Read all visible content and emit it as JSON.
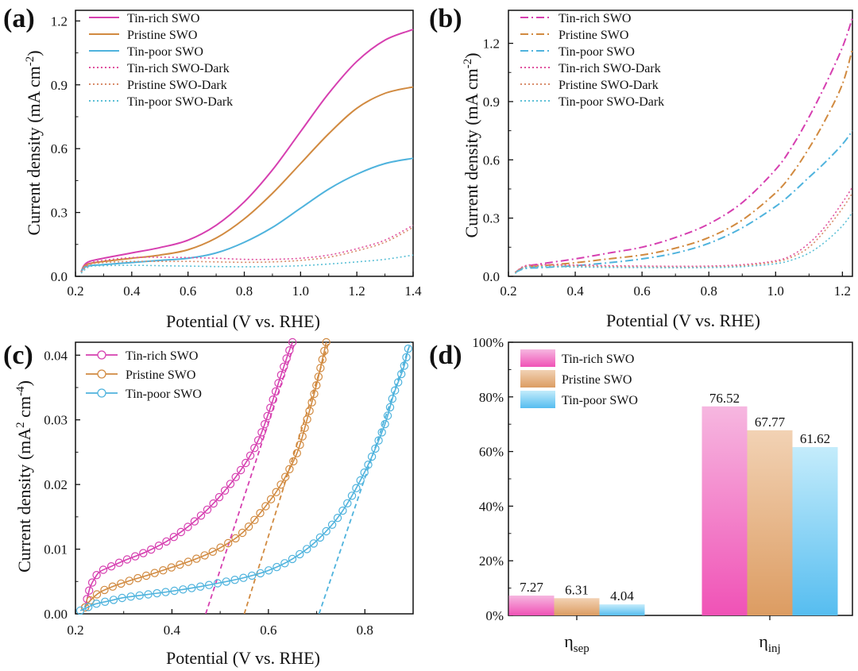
{
  "chart_data": [
    {
      "id": "a",
      "panel_label": "(a)",
      "type": "line",
      "xlabel": "Potential (V vs. RHE)",
      "ylabel_main": "Current density (mA cm",
      "ylabel_sup": "-2",
      "ylabel_end": ")",
      "xlim": [
        0.2,
        1.4
      ],
      "ylim": [
        0,
        1.25
      ],
      "xticks": [
        "0.2",
        "0.4",
        "0.6",
        "0.8",
        "1.0",
        "1.2",
        "1.4"
      ],
      "yticks": [
        "0.0",
        "0.3",
        "0.6",
        "0.9",
        "1.2"
      ],
      "legend": "top-left",
      "series": [
        {
          "name": "Tin-rich SWO",
          "color": "#d63fb0",
          "style": "solid",
          "x": [
            0.22,
            0.23,
            0.25,
            0.3,
            0.4,
            0.5,
            0.6,
            0.7,
            0.8,
            0.9,
            1.0,
            1.1,
            1.2,
            1.3,
            1.4
          ],
          "y": [
            0.02,
            0.05,
            0.07,
            0.085,
            0.11,
            0.135,
            0.17,
            0.24,
            0.35,
            0.5,
            0.68,
            0.86,
            1.01,
            1.11,
            1.16
          ]
        },
        {
          "name": "Pristine SWO",
          "color": "#d18a40",
          "style": "solid",
          "x": [
            0.22,
            0.23,
            0.25,
            0.3,
            0.4,
            0.5,
            0.6,
            0.7,
            0.8,
            0.9,
            1.0,
            1.1,
            1.2,
            1.3,
            1.4
          ],
          "y": [
            0.02,
            0.045,
            0.06,
            0.07,
            0.085,
            0.1,
            0.125,
            0.18,
            0.27,
            0.39,
            0.53,
            0.67,
            0.79,
            0.86,
            0.89
          ]
        },
        {
          "name": "Tin-poor SWO",
          "color": "#4fb3dd",
          "style": "solid",
          "x": [
            0.22,
            0.23,
            0.25,
            0.3,
            0.4,
            0.5,
            0.6,
            0.7,
            0.8,
            0.9,
            1.0,
            1.1,
            1.2,
            1.3,
            1.4
          ],
          "y": [
            0.02,
            0.04,
            0.05,
            0.055,
            0.065,
            0.075,
            0.085,
            0.11,
            0.16,
            0.23,
            0.32,
            0.41,
            0.48,
            0.53,
            0.555
          ]
        },
        {
          "name": "Tin-rich SWO-Dark",
          "color": "#e0509e",
          "style": "dotted",
          "x": [
            0.22,
            0.25,
            0.3,
            0.4,
            0.5,
            0.6,
            0.7,
            0.8,
            0.9,
            1.0,
            1.1,
            1.2,
            1.3,
            1.4
          ],
          "y": [
            0.02,
            0.06,
            0.075,
            0.088,
            0.09,
            0.088,
            0.085,
            0.08,
            0.08,
            0.085,
            0.1,
            0.13,
            0.17,
            0.24
          ]
        },
        {
          "name": "Pristine SWO-Dark",
          "color": "#d88c6a",
          "style": "dotted",
          "x": [
            0.22,
            0.25,
            0.3,
            0.4,
            0.5,
            0.6,
            0.7,
            0.8,
            0.9,
            1.0,
            1.1,
            1.2,
            1.3,
            1.4
          ],
          "y": [
            0.02,
            0.055,
            0.065,
            0.07,
            0.07,
            0.07,
            0.068,
            0.066,
            0.068,
            0.075,
            0.09,
            0.12,
            0.16,
            0.23
          ]
        },
        {
          "name": "Tin-poor SWO-Dark",
          "color": "#5cc0d6",
          "style": "dotted",
          "x": [
            0.22,
            0.25,
            0.3,
            0.4,
            0.5,
            0.6,
            0.7,
            0.8,
            0.9,
            1.0,
            1.1,
            1.2,
            1.3,
            1.4
          ],
          "y": [
            0.015,
            0.045,
            0.05,
            0.052,
            0.05,
            0.048,
            0.046,
            0.045,
            0.046,
            0.05,
            0.058,
            0.068,
            0.08,
            0.1
          ]
        }
      ]
    },
    {
      "id": "b",
      "panel_label": "(b)",
      "type": "line",
      "xlabel": "Potential (V vs. RHE)",
      "ylabel_main": "Current density (mA cm",
      "ylabel_sup": "-2",
      "ylabel_end": ")",
      "xlim": [
        0.2,
        1.23
      ],
      "ylim": [
        0,
        1.37
      ],
      "xticks": [
        "0.2",
        "0.4",
        "0.6",
        "0.8",
        "1.0",
        "1.2"
      ],
      "yticks": [
        "0.0",
        "0.3",
        "0.6",
        "0.9",
        "1.2"
      ],
      "legend": "top-left",
      "series": [
        {
          "name": "Tin-rich SWO",
          "color": "#d63fb0",
          "style": "dashdot",
          "x": [
            0.22,
            0.25,
            0.3,
            0.4,
            0.5,
            0.6,
            0.7,
            0.8,
            0.9,
            1.0,
            1.05,
            1.1,
            1.15,
            1.2,
            1.23
          ],
          "y": [
            0.02,
            0.05,
            0.065,
            0.09,
            0.12,
            0.15,
            0.2,
            0.27,
            0.38,
            0.55,
            0.67,
            0.82,
            0.99,
            1.18,
            1.33
          ]
        },
        {
          "name": "Pristine SWO",
          "color": "#d18a40",
          "style": "dashdot",
          "x": [
            0.22,
            0.25,
            0.3,
            0.4,
            0.5,
            0.6,
            0.7,
            0.8,
            0.9,
            1.0,
            1.05,
            1.1,
            1.15,
            1.2,
            1.23
          ],
          "y": [
            0.02,
            0.045,
            0.055,
            0.07,
            0.09,
            0.11,
            0.145,
            0.2,
            0.29,
            0.43,
            0.53,
            0.66,
            0.81,
            0.99,
            1.17
          ]
        },
        {
          "name": "Tin-poor SWO",
          "color": "#4fb3dd",
          "style": "dashdot",
          "x": [
            0.22,
            0.25,
            0.3,
            0.4,
            0.5,
            0.6,
            0.7,
            0.8,
            0.9,
            1.0,
            1.05,
            1.1,
            1.15,
            1.2,
            1.23
          ],
          "y": [
            0.02,
            0.04,
            0.045,
            0.055,
            0.07,
            0.09,
            0.12,
            0.17,
            0.25,
            0.36,
            0.43,
            0.51,
            0.59,
            0.68,
            0.75
          ]
        },
        {
          "name": "Tin-rich SWO-Dark",
          "color": "#e0509e",
          "style": "dotted",
          "x": [
            0.22,
            0.25,
            0.3,
            0.4,
            0.5,
            0.6,
            0.7,
            0.8,
            0.9,
            1.0,
            1.05,
            1.1,
            1.15,
            1.2,
            1.23
          ],
          "y": [
            0.02,
            0.055,
            0.06,
            0.058,
            0.055,
            0.053,
            0.052,
            0.053,
            0.06,
            0.08,
            0.11,
            0.17,
            0.26,
            0.38,
            0.46
          ]
        },
        {
          "name": "Pristine SWO-Dark",
          "color": "#d88c6a",
          "style": "dotted",
          "x": [
            0.22,
            0.25,
            0.3,
            0.4,
            0.5,
            0.6,
            0.7,
            0.8,
            0.9,
            1.0,
            1.05,
            1.1,
            1.15,
            1.2,
            1.23
          ],
          "y": [
            0.02,
            0.05,
            0.055,
            0.053,
            0.05,
            0.048,
            0.047,
            0.048,
            0.055,
            0.075,
            0.1,
            0.15,
            0.24,
            0.35,
            0.43
          ]
        },
        {
          "name": "Tin-poor SWO-Dark",
          "color": "#5cc0d6",
          "style": "dotted",
          "x": [
            0.22,
            0.25,
            0.3,
            0.4,
            0.5,
            0.6,
            0.7,
            0.8,
            0.9,
            1.0,
            1.05,
            1.1,
            1.15,
            1.2,
            1.23
          ],
          "y": [
            0.015,
            0.045,
            0.05,
            0.048,
            0.046,
            0.045,
            0.044,
            0.045,
            0.05,
            0.065,
            0.085,
            0.12,
            0.18,
            0.26,
            0.33
          ]
        }
      ]
    },
    {
      "id": "c",
      "panel_label": "(c)",
      "type": "scatter",
      "xlabel": "Potential (V vs. RHE)",
      "ylabel_main": "Current density (mA",
      "ylabel_sup": "2",
      "ylabel_mid": " cm",
      "ylabel_sup2": "-4",
      "ylabel_end": ")",
      "xlim": [
        0.2,
        0.9
      ],
      "ylim": [
        0,
        0.042
      ],
      "xticks": [
        "0.2",
        "0.4",
        "0.6",
        "0.8"
      ],
      "yticks": [
        "0.00",
        "0.01",
        "0.02",
        "0.03",
        "0.04"
      ],
      "legend": "top-left",
      "series": [
        {
          "name": "Tin-rich SWO",
          "color": "#d63fb0",
          "marker": "open-circle",
          "x": [
            0.22,
            0.23,
            0.24,
            0.25,
            0.27,
            0.3,
            0.35,
            0.4,
            0.45,
            0.5,
            0.55,
            0.58,
            0.6,
            0.62,
            0.64,
            0.65
          ],
          "y": [
            0.001,
            0.004,
            0.0055,
            0.0065,
            0.0072,
            0.0082,
            0.0097,
            0.0117,
            0.0145,
            0.0182,
            0.023,
            0.027,
            0.031,
            0.0355,
            0.04,
            0.042
          ],
          "tangent": {
            "x": [
              0.47,
              0.655
            ],
            "y": [
              0.0,
              0.042
            ]
          }
        },
        {
          "name": "Pristine SWO",
          "color": "#d18a40",
          "marker": "open-circle",
          "x": [
            0.22,
            0.23,
            0.25,
            0.28,
            0.32,
            0.36,
            0.4,
            0.45,
            0.5,
            0.55,
            0.6,
            0.63,
            0.66,
            0.68,
            0.7,
            0.72
          ],
          "y": [
            0.001,
            0.002,
            0.0033,
            0.0043,
            0.0053,
            0.0062,
            0.0072,
            0.0085,
            0.0102,
            0.0128,
            0.0172,
            0.0205,
            0.025,
            0.03,
            0.0355,
            0.042
          ],
          "tangent": {
            "x": [
              0.55,
              0.725
            ],
            "y": [
              0.0,
              0.042
            ]
          }
        },
        {
          "name": "Tin-poor SWO",
          "color": "#4fb3dd",
          "marker": "open-circle",
          "x": [
            0.21,
            0.22,
            0.24,
            0.27,
            0.3,
            0.35,
            0.4,
            0.45,
            0.5,
            0.55,
            0.6,
            0.65,
            0.7,
            0.75,
            0.8,
            0.84,
            0.86,
            0.88,
            0.89
          ],
          "y": [
            0.0005,
            0.0008,
            0.0015,
            0.002,
            0.0025,
            0.003,
            0.0035,
            0.0041,
            0.0048,
            0.0056,
            0.0067,
            0.0085,
            0.0113,
            0.0155,
            0.022,
            0.029,
            0.034,
            0.038,
            0.041
          ],
          "tangent": {
            "x": [
              0.705,
              0.895
            ],
            "y": [
              0.0,
              0.042
            ]
          }
        }
      ]
    },
    {
      "id": "d",
      "panel_label": "(d)",
      "type": "bar",
      "categories": [
        {
          "main": "η",
          "sub": "sep"
        },
        {
          "main": "η",
          "sub": "inj"
        }
      ],
      "ylim": [
        0,
        100
      ],
      "yticks": [
        "0%",
        "20%",
        "40%",
        "60%",
        "80%",
        "100%"
      ],
      "legend": "top-left",
      "series": [
        {
          "name": "Tin-rich SWO",
          "color": "#f06dc4",
          "values": [
            7.27,
            76.52
          ],
          "labels": [
            "7.27",
            "76.52"
          ]
        },
        {
          "name": "Pristine SWO",
          "color": "#e0a878",
          "values": [
            6.31,
            67.77
          ],
          "labels": [
            "6.31",
            "67.77"
          ]
        },
        {
          "name": "Tin-poor SWO",
          "color": "#66c5f0",
          "values": [
            4.04,
            61.62
          ],
          "labels": [
            "4.04",
            "61.62"
          ]
        }
      ]
    }
  ]
}
